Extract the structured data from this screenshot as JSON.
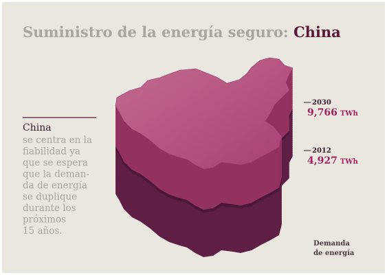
{
  "header": {
    "title_lead": "Suministro de la energía seguro: ",
    "title_highlight": "China"
  },
  "sidebar": {
    "heading": "China",
    "body_lines": [
      "se centra en la",
      "fiabilidad ya",
      "que se espera",
      "que la deman-",
      "da de energía",
      "se duplique",
      "durante los",
      "próximos",
      "15 años."
    ]
  },
  "markers": [
    {
      "year": "2030",
      "value": "9,766",
      "unit": "TWh"
    },
    {
      "year": "2012",
      "value": "4,927",
      "unit": "TWh"
    }
  ],
  "footnote": [
    "Demanda",
    "de energía"
  ]
}
